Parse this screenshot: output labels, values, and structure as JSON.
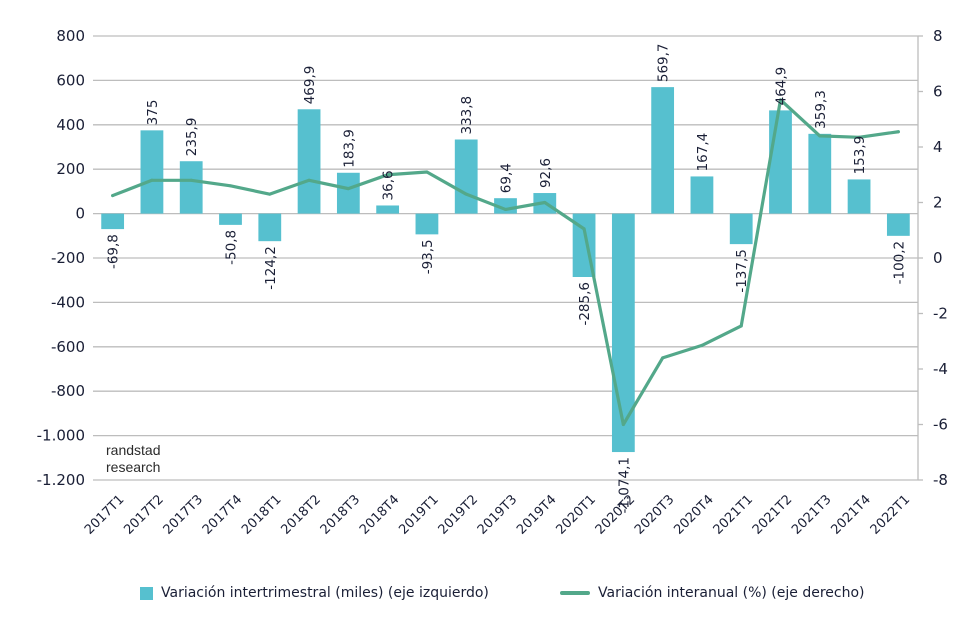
{
  "chart_data": {
    "type": "bar",
    "title": "",
    "xlabel": "",
    "ylabel": "",
    "y2label": "",
    "categories": [
      "2017T1",
      "2017T2",
      "2017T3",
      "2017T4",
      "2018T1",
      "2018T2",
      "2018T3",
      "2018T4",
      "2019T1",
      "2019T2",
      "2019T3",
      "2019T4",
      "2020T1",
      "2020T2",
      "2020T3",
      "2020T4",
      "2021T1",
      "2021T2",
      "2021T3",
      "2021T4",
      "2022T1"
    ],
    "series": [
      {
        "name": "Variación intertrimestral (miles) (eje izquierdo)",
        "type": "bar",
        "axis": "left",
        "color": "#56c0cf",
        "values": [
          -69.8,
          375,
          235.9,
          -50.8,
          -124.2,
          469.9,
          183.9,
          36.6,
          -93.5,
          333.8,
          69.4,
          92.6,
          -285.6,
          -1074.1,
          569.7,
          167.4,
          -137.5,
          464.9,
          359.3,
          153.9,
          -100.2
        ],
        "labels": [
          "-69,8",
          "375",
          "235,9",
          "-50,8",
          "-124,2",
          "469,9",
          "183,9",
          "36,6",
          "-93,5",
          "333,8",
          "69,4",
          "92,6",
          "-285,6",
          "-1.074,1",
          "569,7",
          "167,4",
          "-137,5",
          "464,9",
          "359,3",
          "153,9",
          "-100,2"
        ]
      },
      {
        "name": "Variación interanual (%) (eje derecho)",
        "type": "line",
        "axis": "right",
        "color": "#53a88a",
        "values": [
          2.25,
          2.8,
          2.8,
          2.6,
          2.3,
          2.8,
          2.5,
          3.0,
          3.1,
          2.3,
          1.75,
          2.0,
          1.05,
          -6.0,
          -3.6,
          -3.15,
          -2.45,
          5.7,
          4.4,
          4.35,
          4.55
        ]
      }
    ],
    "ylim": [
      -1200,
      800
    ],
    "yticks": [
      800,
      600,
      400,
      200,
      0,
      -200,
      -400,
      -600,
      -800,
      -1000,
      -1200
    ],
    "ytick_labels": [
      "800",
      "600",
      "400",
      "200",
      "0",
      "-200",
      "-400",
      "-600",
      "-800",
      "-1.000",
      "-1.200"
    ],
    "y2lim": [
      -8,
      8
    ],
    "y2ticks": [
      8,
      6,
      4,
      2,
      0,
      -2,
      -4,
      -6,
      -8
    ],
    "y2tick_labels": [
      "8",
      "6",
      "4",
      "2",
      "0",
      "-2",
      "-4",
      "-6",
      "-8"
    ],
    "grid": true,
    "legend": "bottom",
    "watermark": [
      "randstad",
      "research"
    ]
  }
}
